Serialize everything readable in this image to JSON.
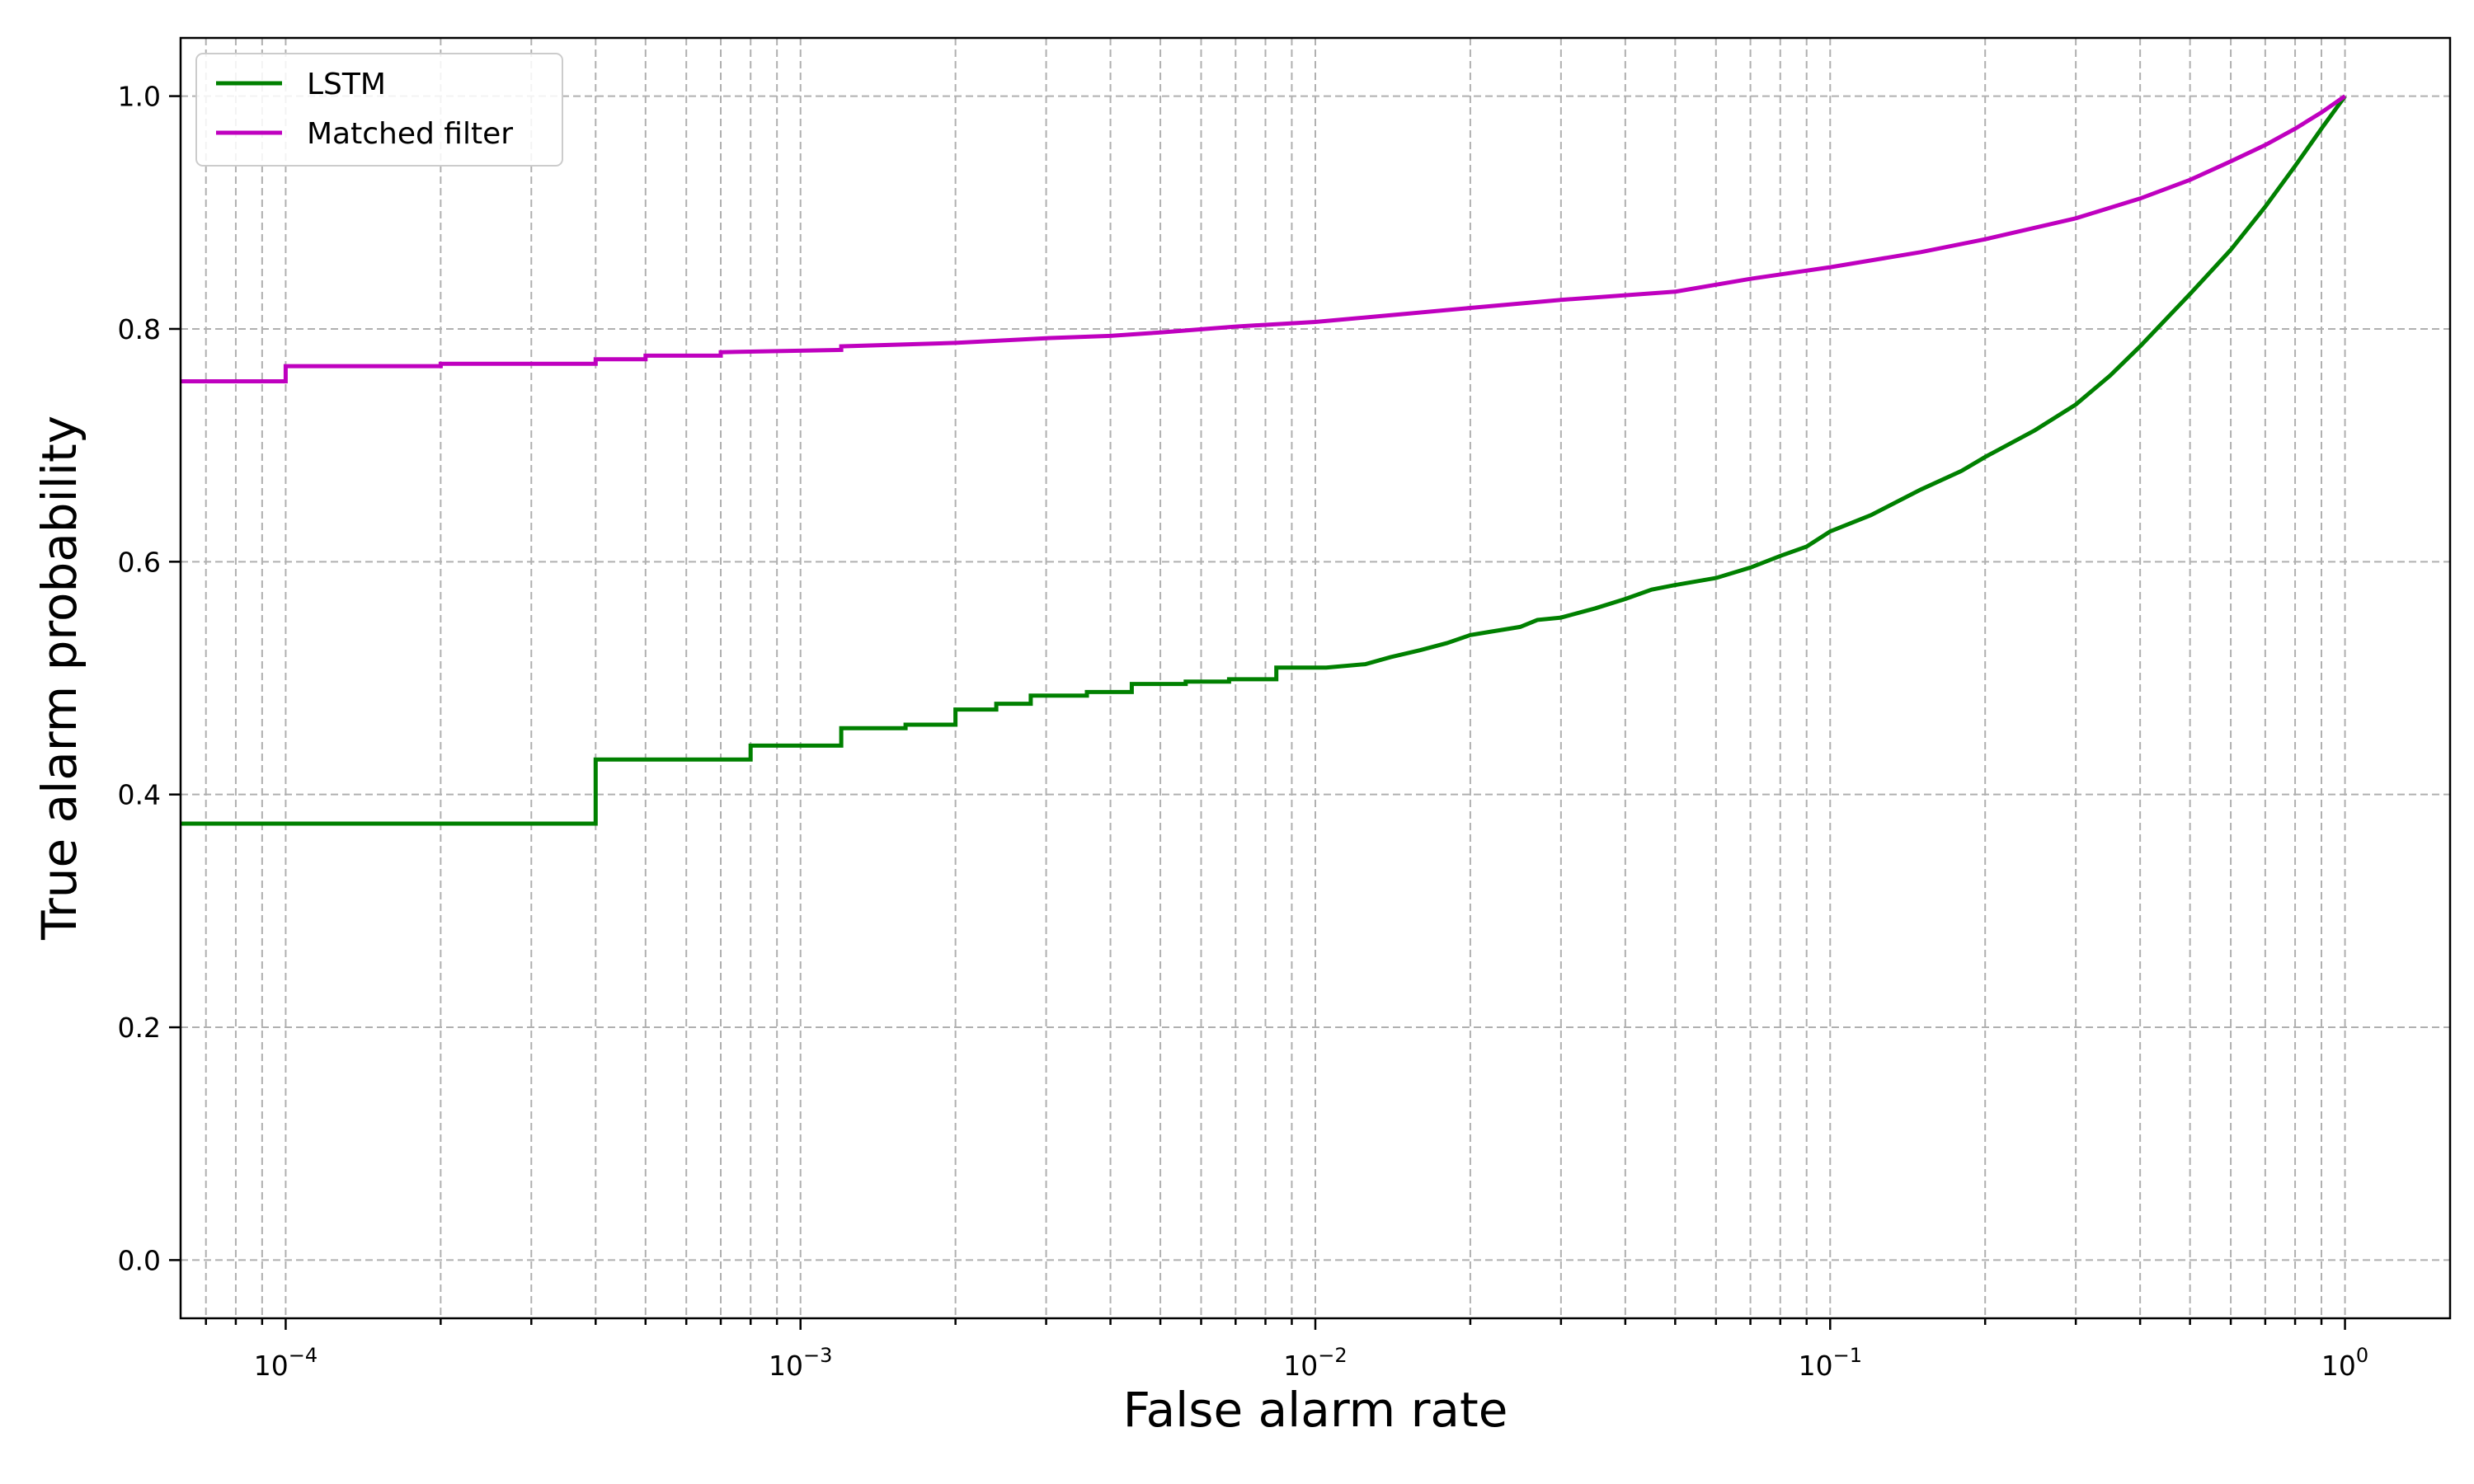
{
  "chart_data": {
    "type": "line",
    "title": "",
    "xlabel": "False alarm rate",
    "ylabel": "True alarm probability",
    "xscale": "log",
    "xlim": [
      6.25e-05,
      1.6
    ],
    "ylim": [
      -0.05,
      1.05
    ],
    "grid": true,
    "grid_style": "dashed",
    "legend_position": "top-left",
    "x_ticks": [
      {
        "value": 0.0001,
        "base": "10",
        "exp": "−4"
      },
      {
        "value": 0.001,
        "base": "10",
        "exp": "−3"
      },
      {
        "value": 0.01,
        "base": "10",
        "exp": "−2"
      },
      {
        "value": 0.1,
        "base": "10",
        "exp": "−1"
      },
      {
        "value": 1,
        "base": "10",
        "exp": "0"
      }
    ],
    "y_ticks": [
      {
        "value": 0.0,
        "label": "0.0"
      },
      {
        "value": 0.2,
        "label": "0.2"
      },
      {
        "value": 0.4,
        "label": "0.4"
      },
      {
        "value": 0.6,
        "label": "0.6"
      },
      {
        "value": 0.8,
        "label": "0.8"
      },
      {
        "value": 1.0,
        "label": "1.0"
      }
    ],
    "series": [
      {
        "name": "LSTM",
        "color": "#008000",
        "step": true,
        "points": [
          [
            6.25e-05,
            0.375
          ],
          [
            0.0004,
            0.375
          ],
          [
            0.0004,
            0.43
          ],
          [
            0.0008,
            0.43
          ],
          [
            0.0008,
            0.442
          ],
          [
            0.0012,
            0.442
          ],
          [
            0.0012,
            0.457
          ],
          [
            0.0016,
            0.457
          ],
          [
            0.0016,
            0.46
          ],
          [
            0.002,
            0.46
          ],
          [
            0.002,
            0.473
          ],
          [
            0.0024,
            0.473
          ],
          [
            0.0024,
            0.478
          ],
          [
            0.0028,
            0.478
          ],
          [
            0.0028,
            0.485
          ],
          [
            0.0036,
            0.485
          ],
          [
            0.0036,
            0.488
          ],
          [
            0.0044,
            0.488
          ],
          [
            0.0044,
            0.495
          ],
          [
            0.0056,
            0.495
          ],
          [
            0.0056,
            0.497
          ],
          [
            0.0068,
            0.497
          ],
          [
            0.0068,
            0.499
          ],
          [
            0.0084,
            0.499
          ],
          [
            0.0084,
            0.509
          ],
          [
            0.0105,
            0.509
          ],
          [
            0.0125,
            0.512
          ],
          [
            0.014,
            0.518
          ],
          [
            0.016,
            0.524
          ],
          [
            0.018,
            0.53
          ],
          [
            0.02,
            0.537
          ],
          [
            0.022,
            0.54
          ],
          [
            0.025,
            0.544
          ],
          [
            0.027,
            0.55
          ],
          [
            0.03,
            0.552
          ],
          [
            0.035,
            0.56
          ],
          [
            0.04,
            0.568
          ],
          [
            0.045,
            0.576
          ],
          [
            0.05,
            0.58
          ],
          [
            0.06,
            0.586
          ],
          [
            0.07,
            0.595
          ],
          [
            0.08,
            0.605
          ],
          [
            0.09,
            0.613
          ],
          [
            0.1,
            0.626
          ],
          [
            0.12,
            0.64
          ],
          [
            0.15,
            0.662
          ],
          [
            0.18,
            0.678
          ],
          [
            0.2,
            0.69
          ],
          [
            0.25,
            0.713
          ],
          [
            0.3,
            0.735
          ],
          [
            0.35,
            0.76
          ],
          [
            0.4,
            0.785
          ],
          [
            0.5,
            0.83
          ],
          [
            0.6,
            0.868
          ],
          [
            0.7,
            0.905
          ],
          [
            0.8,
            0.94
          ],
          [
            0.9,
            0.972
          ],
          [
            1.0,
            1.0
          ]
        ]
      },
      {
        "name": "Matched filter",
        "color": "#bf00bf",
        "step": true,
        "points": [
          [
            6.25e-05,
            0.755
          ],
          [
            0.0001,
            0.755
          ],
          [
            0.0001,
            0.768
          ],
          [
            0.0002,
            0.768
          ],
          [
            0.0002,
            0.77
          ],
          [
            0.0004,
            0.77
          ],
          [
            0.0004,
            0.774
          ],
          [
            0.0005,
            0.774
          ],
          [
            0.0005,
            0.777
          ],
          [
            0.0007,
            0.777
          ],
          [
            0.0007,
            0.78
          ],
          [
            0.0012,
            0.782
          ],
          [
            0.0012,
            0.785
          ],
          [
            0.002,
            0.788
          ],
          [
            0.003,
            0.792
          ],
          [
            0.004,
            0.794
          ],
          [
            0.005,
            0.797
          ],
          [
            0.007,
            0.802
          ],
          [
            0.01,
            0.806
          ],
          [
            0.015,
            0.813
          ],
          [
            0.02,
            0.818
          ],
          [
            0.03,
            0.825
          ],
          [
            0.05,
            0.832
          ],
          [
            0.07,
            0.843
          ],
          [
            0.1,
            0.853
          ],
          [
            0.15,
            0.866
          ],
          [
            0.2,
            0.877
          ],
          [
            0.3,
            0.895
          ],
          [
            0.4,
            0.912
          ],
          [
            0.5,
            0.928
          ],
          [
            0.6,
            0.944
          ],
          [
            0.7,
            0.958
          ],
          [
            0.8,
            0.972
          ],
          [
            0.9,
            0.986
          ],
          [
            1.0,
            1.0
          ]
        ]
      }
    ]
  }
}
